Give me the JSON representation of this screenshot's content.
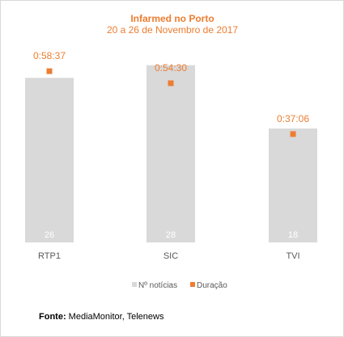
{
  "chart_data": {
    "type": "bar",
    "title": "Infarmed no Porto",
    "subtitle": "20 a 26 de Novembro de 2017",
    "categories": [
      "RTP1",
      "SIC",
      "TVI"
    ],
    "series": [
      {
        "name": "Nº notícias",
        "values": [
          26,
          28,
          18
        ],
        "color": "#d9d9d9",
        "ylim": [
          0,
          30
        ]
      },
      {
        "name": "Duração",
        "values": [
          "0:58:37",
          "0:54:30",
          "0:37:06"
        ],
        "seconds": [
          3517,
          3270,
          2226
        ],
        "color": "#ed7d31",
        "marker": "square",
        "ylim": [
          0,
          3900
        ]
      }
    ],
    "legend_position": "bottom",
    "grid": false
  },
  "source": {
    "label": "Fonte:",
    "text": "MediaMonitor, Telenews"
  }
}
